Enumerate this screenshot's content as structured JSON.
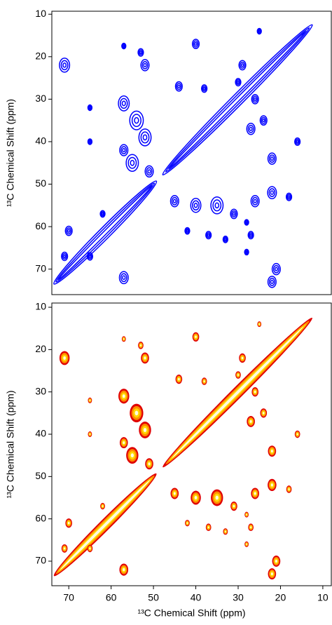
{
  "chart_data": [
    {
      "type": "contour",
      "ylabel": "¹³C Chemical Shift (ppm)",
      "color": "#0000ff",
      "xlim": [
        74,
        8
      ],
      "ylim": [
        9.3,
        76
      ],
      "yticks": [
        10,
        20,
        30,
        40,
        50,
        60,
        70
      ],
      "diagonal": [
        {
          "from": 73.5,
          "to": 49.3
        },
        {
          "from": 47.8,
          "to": 12.5
        }
      ],
      "peaks": {
        "x": [
          71,
          57,
          52,
          53,
          40,
          44,
          38,
          30,
          25,
          57,
          54,
          52,
          55,
          51,
          57,
          65,
          65,
          27,
          24,
          22,
          16,
          26,
          29,
          45,
          40,
          35,
          31,
          26,
          22,
          37,
          27,
          33,
          28,
          18,
          21,
          22,
          70,
          71,
          65,
          57,
          42,
          62,
          28
        ],
        "y": [
          22,
          17.5,
          22,
          19,
          17,
          27,
          27.5,
          26,
          14,
          31,
          35,
          39,
          45,
          47,
          42,
          32,
          40,
          37,
          35,
          44,
          40,
          30,
          22,
          54,
          55,
          55,
          57,
          54,
          52,
          62,
          62,
          63,
          66,
          53,
          70,
          73,
          61,
          67,
          67,
          72,
          61,
          57,
          59
        ],
        "size": [
          1.5,
          0.6,
          1.2,
          0.8,
          1,
          1,
          0.8,
          0.8,
          0.6,
          1.6,
          2,
          1.8,
          1.8,
          1.2,
          1.2,
          0.6,
          0.6,
          1.2,
          1,
          1.2,
          0.8,
          1,
          1,
          1.2,
          1.5,
          1.8,
          1,
          1.2,
          1.3,
          0.8,
          0.8,
          0.7,
          0.6,
          0.8,
          1.2,
          1.2,
          1,
          0.9,
          0.8,
          1.3,
          0.7,
          0.7,
          0.6
        ]
      }
    },
    {
      "type": "heatmap",
      "ylabel": "¹³C Chemical Shift (ppm)",
      "xlabel": "¹³C Chemical Shift (ppm)",
      "colors": [
        "#e00000",
        "#ff8c00",
        "#ffd700",
        "#fffde0"
      ],
      "xlim": [
        74,
        8
      ],
      "ylim": [
        9,
        75.8
      ],
      "xticks": [
        70,
        60,
        50,
        40,
        30,
        20,
        10
      ],
      "yticks": [
        10,
        20,
        30,
        40,
        50,
        60,
        70
      ],
      "diagonal": [
        {
          "from": 73.5,
          "to": 49.3
        },
        {
          "from": 47.8,
          "to": 12.5
        }
      ],
      "peaks": {
        "x": [
          71,
          57,
          52,
          53,
          40,
          44,
          38,
          30,
          25,
          57,
          54,
          52,
          55,
          51,
          57,
          65,
          65,
          27,
          24,
          22,
          16,
          26,
          29,
          45,
          40,
          35,
          31,
          26,
          22,
          37,
          27,
          33,
          28,
          18,
          21,
          22,
          70,
          71,
          65,
          57,
          42,
          62,
          28
        ],
        "y": [
          22,
          17.5,
          22,
          19,
          17,
          27,
          27.5,
          26,
          14,
          31,
          35,
          39,
          45,
          47,
          42,
          32,
          40,
          37,
          35,
          44,
          40,
          30,
          22,
          54,
          55,
          55,
          57,
          54,
          52,
          62,
          62,
          63,
          66,
          53,
          70,
          73,
          61,
          67,
          67,
          72,
          61,
          57,
          59
        ],
        "size": [
          1.5,
          0.6,
          1.2,
          0.8,
          1,
          1,
          0.8,
          0.8,
          0.6,
          1.6,
          2,
          1.8,
          1.8,
          1.2,
          1.2,
          0.6,
          0.6,
          1.2,
          1,
          1.2,
          0.8,
          1,
          1,
          1.2,
          1.5,
          1.8,
          1,
          1.2,
          1.3,
          0.8,
          0.8,
          0.7,
          0.6,
          0.8,
          1.2,
          1.2,
          1,
          0.9,
          0.8,
          1.3,
          0.7,
          0.7,
          0.6
        ]
      }
    }
  ]
}
